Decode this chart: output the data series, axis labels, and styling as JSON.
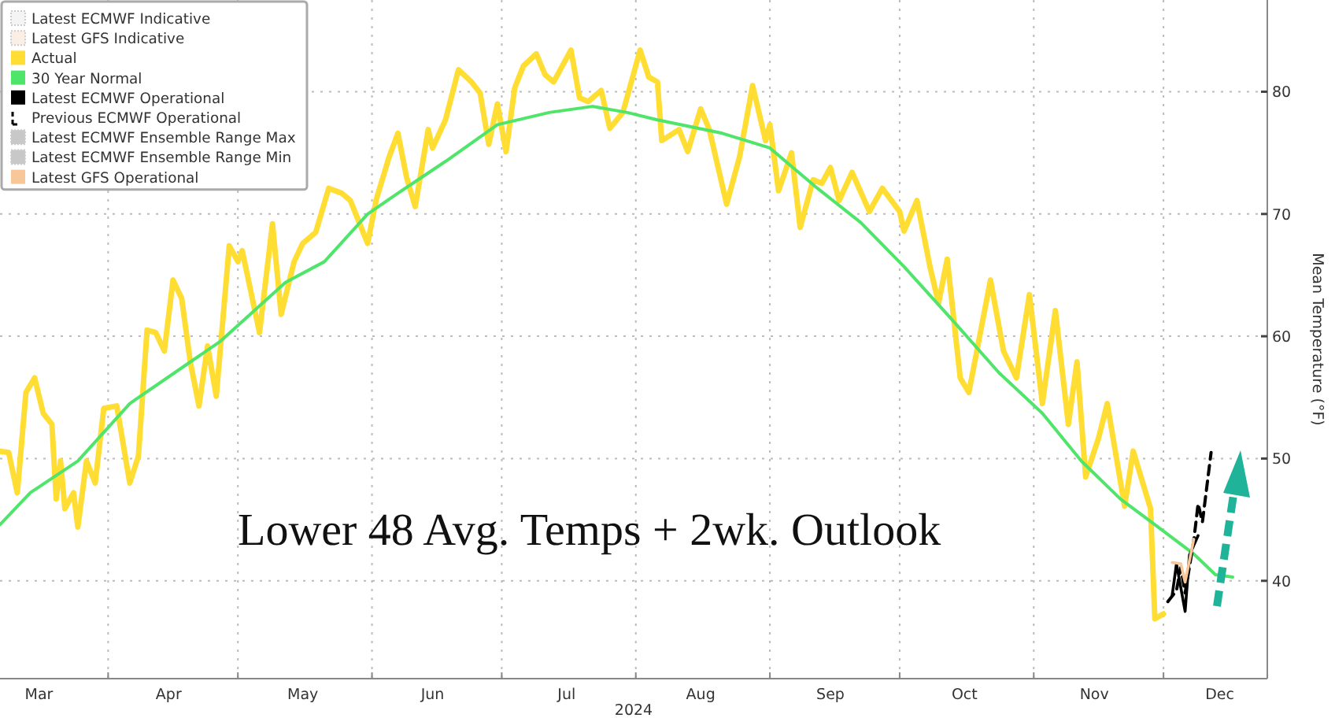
{
  "chart_data": {
    "type": "line",
    "xlabel": "2024",
    "ylabel": "Mean Temperature (°F)",
    "annotations": [
      "Lower 48 Avg. Temps + 2wk. Outlook"
    ],
    "xlim": [
      "2024-03-07",
      "2024-12-25"
    ],
    "ylim": [
      32,
      87.5
    ],
    "xticks": [
      {
        "value": "2024-03-16",
        "label": "Mar"
      },
      {
        "value": "2024-04-01",
        "label": null
      },
      {
        "value": "2024-04-15",
        "label": "Apr"
      },
      {
        "value": "2024-05-01",
        "label": null
      },
      {
        "value": "2024-05-16",
        "label": "May"
      },
      {
        "value": "2024-06-01",
        "label": null
      },
      {
        "value": "2024-06-15",
        "label": "Jun"
      },
      {
        "value": "2024-07-01",
        "label": null
      },
      {
        "value": "2024-07-16",
        "label": "Jul"
      },
      {
        "value": "2024-08-01",
        "label": null
      },
      {
        "value": "2024-08-16",
        "label": "Aug"
      },
      {
        "value": "2024-09-01",
        "label": null
      },
      {
        "value": "2024-09-15",
        "label": "Sep"
      },
      {
        "value": "2024-10-01",
        "label": null
      },
      {
        "value": "2024-10-16",
        "label": "Oct"
      },
      {
        "value": "2024-11-01",
        "label": null
      },
      {
        "value": "2024-11-15",
        "label": "Nov"
      },
      {
        "value": "2024-12-01",
        "label": null
      },
      {
        "value": "2024-12-14",
        "label": "Dec"
      }
    ],
    "yticks": [
      40,
      50,
      60,
      70,
      80
    ],
    "grid": true,
    "legend": "top left",
    "series": [
      {
        "name": "Latest ECMWF Indicative",
        "color": "#f4f4f4"
      },
      {
        "name": "Latest GFS Indicative",
        "color": "#fbeee4"
      },
      {
        "name": "Actual",
        "color": "#ffdd33",
        "x": [
          "2024-03-07",
          "2024-03-09",
          "2024-03-11",
          "2024-03-13",
          "2024-03-15",
          "2024-03-17",
          "2024-03-19",
          "2024-03-20",
          "2024-03-21",
          "2024-03-22",
          "2024-03-24",
          "2024-03-25",
          "2024-03-27",
          "2024-03-29",
          "2024-03-31",
          "2024-04-03",
          "2024-04-06",
          "2024-04-08",
          "2024-04-10",
          "2024-04-12",
          "2024-04-14",
          "2024-04-16",
          "2024-04-18",
          "2024-04-20",
          "2024-04-22",
          "2024-04-24",
          "2024-04-26",
          "2024-04-29",
          "2024-05-01",
          "2024-05-02",
          "2024-05-06",
          "2024-05-09",
          "2024-05-11",
          "2024-05-14",
          "2024-05-16",
          "2024-05-19",
          "2024-05-22",
          "2024-05-25",
          "2024-05-27",
          "2024-05-31",
          "2024-06-02",
          "2024-06-05",
          "2024-06-07",
          "2024-06-09",
          "2024-06-11",
          "2024-06-14",
          "2024-06-15",
          "2024-06-18",
          "2024-06-21",
          "2024-06-24",
          "2024-06-26",
          "2024-06-28",
          "2024-06-30",
          "2024-07-02",
          "2024-07-04",
          "2024-07-06",
          "2024-07-09",
          "2024-07-11",
          "2024-07-13",
          "2024-07-17",
          "2024-07-19",
          "2024-07-21",
          "2024-07-24",
          "2024-07-26",
          "2024-07-29",
          "2024-08-02",
          "2024-08-04",
          "2024-08-06",
          "2024-08-07",
          "2024-08-11",
          "2024-08-13",
          "2024-08-16",
          "2024-08-18",
          "2024-08-22",
          "2024-08-25",
          "2024-08-28",
          "2024-08-31",
          "2024-09-01",
          "2024-09-03",
          "2024-09-06",
          "2024-09-08",
          "2024-09-11",
          "2024-09-13",
          "2024-09-15",
          "2024-09-17",
          "2024-09-20",
          "2024-09-24",
          "2024-09-27",
          "2024-10-01",
          "2024-10-02",
          "2024-10-05",
          "2024-10-08",
          "2024-10-10",
          "2024-10-12",
          "2024-10-15",
          "2024-10-17",
          "2024-10-22",
          "2024-10-25",
          "2024-10-28",
          "2024-10-31",
          "2024-11-03",
          "2024-11-06",
          "2024-11-09",
          "2024-11-11",
          "2024-11-13",
          "2024-11-16",
          "2024-11-18",
          "2024-11-22",
          "2024-11-24",
          "2024-11-28",
          "2024-11-29",
          "2024-12-01"
        ],
        "values": [
          50.6,
          50.5,
          47.2,
          55.4,
          56.6,
          53.7,
          52.8,
          46.7,
          49.8,
          45.9,
          47.2,
          44.4,
          49.8,
          48.0,
          54.1,
          54.3,
          48.0,
          50.2,
          60.5,
          60.3,
          58.8,
          64.6,
          63.1,
          57.9,
          54.3,
          59.2,
          55.1,
          67.4,
          66.1,
          67.0,
          60.3,
          69.2,
          61.8,
          66.1,
          67.6,
          68.5,
          72.1,
          71.7,
          71.1,
          67.6,
          71.2,
          74.7,
          76.6,
          73.0,
          70.6,
          76.9,
          75.4,
          77.7,
          81.8,
          80.8,
          79.9,
          75.7,
          79.0,
          75.1,
          80.3,
          82.1,
          83.1,
          81.4,
          80.8,
          83.4,
          79.5,
          79.2,
          80.1,
          77.0,
          78.3,
          83.4,
          81.2,
          80.8,
          76.0,
          76.9,
          75.1,
          78.6,
          76.9,
          70.8,
          74.7,
          80.5,
          76.0,
          77.3,
          71.9,
          75.0,
          68.9,
          72.8,
          72.5,
          73.8,
          71.1,
          73.4,
          70.2,
          72.1,
          70.2,
          68.6,
          71.1,
          65.7,
          62.7,
          66.3,
          56.6,
          55.4,
          64.6,
          58.8,
          56.6,
          63.4,
          54.5,
          62.1,
          52.8,
          57.9,
          48.5,
          51.7,
          54.5,
          46.1,
          50.6,
          45.9,
          36.9,
          37.3
        ]
      },
      {
        "name": "30 Year Normal",
        "color": "#4ee56a",
        "x": [
          "2024-03-07",
          "2024-03-14",
          "2024-03-25",
          "2024-04-06",
          "2024-04-20",
          "2024-04-27",
          "2024-05-12",
          "2024-05-21",
          "2024-05-31",
          "2024-06-07",
          "2024-06-18",
          "2024-06-30",
          "2024-07-12",
          "2024-07-22",
          "2024-07-30",
          "2024-08-06",
          "2024-08-21",
          "2024-09-01",
          "2024-09-12",
          "2024-09-22",
          "2024-10-02",
          "2024-10-13",
          "2024-10-24",
          "2024-11-03",
          "2024-11-12",
          "2024-11-21",
          "2024-11-29",
          "2024-12-08",
          "2024-12-13",
          "2024-12-17"
        ],
        "values": [
          44.6,
          47.2,
          49.8,
          54.5,
          57.9,
          59.6,
          64.4,
          66.1,
          70.0,
          71.7,
          74.3,
          77.3,
          78.3,
          78.8,
          78.3,
          77.7,
          76.6,
          75.4,
          72.1,
          69.3,
          65.7,
          61.4,
          57.0,
          53.7,
          49.8,
          46.7,
          44.6,
          42.2,
          40.5,
          40.3
        ]
      },
      {
        "name": "Latest ECMWF Operational",
        "color": "#000000",
        "x": [
          "2024-12-03",
          "2024-12-04",
          "2024-12-06",
          "2024-12-07",
          "2024-12-09"
        ],
        "values": [
          38.8,
          41.4,
          37.5,
          42.1,
          43.7
        ]
      },
      {
        "name": "Previous ECMWF Operational",
        "color": "#000000",
        "line_style": "dashed",
        "x": [
          "2024-12-02",
          "2024-12-04",
          "2024-12-05",
          "2024-12-06",
          "2024-12-08",
          "2024-12-09",
          "2024-12-10",
          "2024-12-12"
        ],
        "values": [
          38.3,
          39.2,
          41.1,
          39.0,
          43.3,
          46.3,
          44.8,
          50.5
        ]
      },
      {
        "name": "Latest ECMWF Ensemble Range Max",
        "color": "#c8c8c8"
      },
      {
        "name": "Latest ECMWF Ensemble Range Min",
        "color": "#c8c8c8"
      },
      {
        "name": "Latest GFS Operational",
        "color": "#f7c79a",
        "x": [
          "2024-12-03",
          "2024-12-05",
          "2024-12-06",
          "2024-12-08"
        ],
        "values": [
          41.5,
          41.4,
          39.9,
          43.4
        ]
      }
    ]
  }
}
